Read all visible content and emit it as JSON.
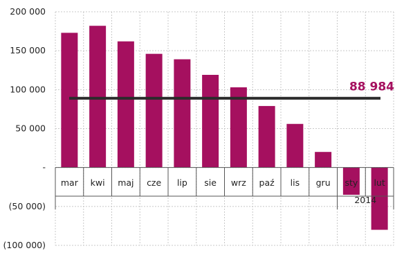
{
  "chart_data": {
    "type": "bar",
    "categories": [
      "mar",
      "kwi",
      "maj",
      "cze",
      "lip",
      "sie",
      "wrz",
      "paź",
      "lis",
      "gru",
      "sty",
      "lut"
    ],
    "year_label": "2014",
    "values": [
      173000,
      182000,
      162000,
      146000,
      139000,
      119000,
      103000,
      79000,
      56000,
      20000,
      -35000,
      -80000
    ],
    "average": {
      "value": 88984,
      "label": "88 984"
    },
    "ylim": [
      -100000,
      200000
    ],
    "yticks": [
      {
        "value": 200000,
        "label": "200 000"
      },
      {
        "value": 150000,
        "label": "150 000"
      },
      {
        "value": 100000,
        "label": "100 000"
      },
      {
        "value": 50000,
        "label": "50 000"
      },
      {
        "value": 0,
        "label": "-"
      },
      {
        "value": -50000,
        "label": "(50 000)"
      },
      {
        "value": -100000,
        "label": "(100 000)"
      }
    ],
    "title": "",
    "xlabel": "",
    "ylabel": "",
    "grid": true,
    "legend": "none",
    "colors": {
      "bar": "#a5105f",
      "average_line": "#2b2b2b",
      "grid": "#c8c8c8",
      "average_label": "#a5105f"
    }
  }
}
